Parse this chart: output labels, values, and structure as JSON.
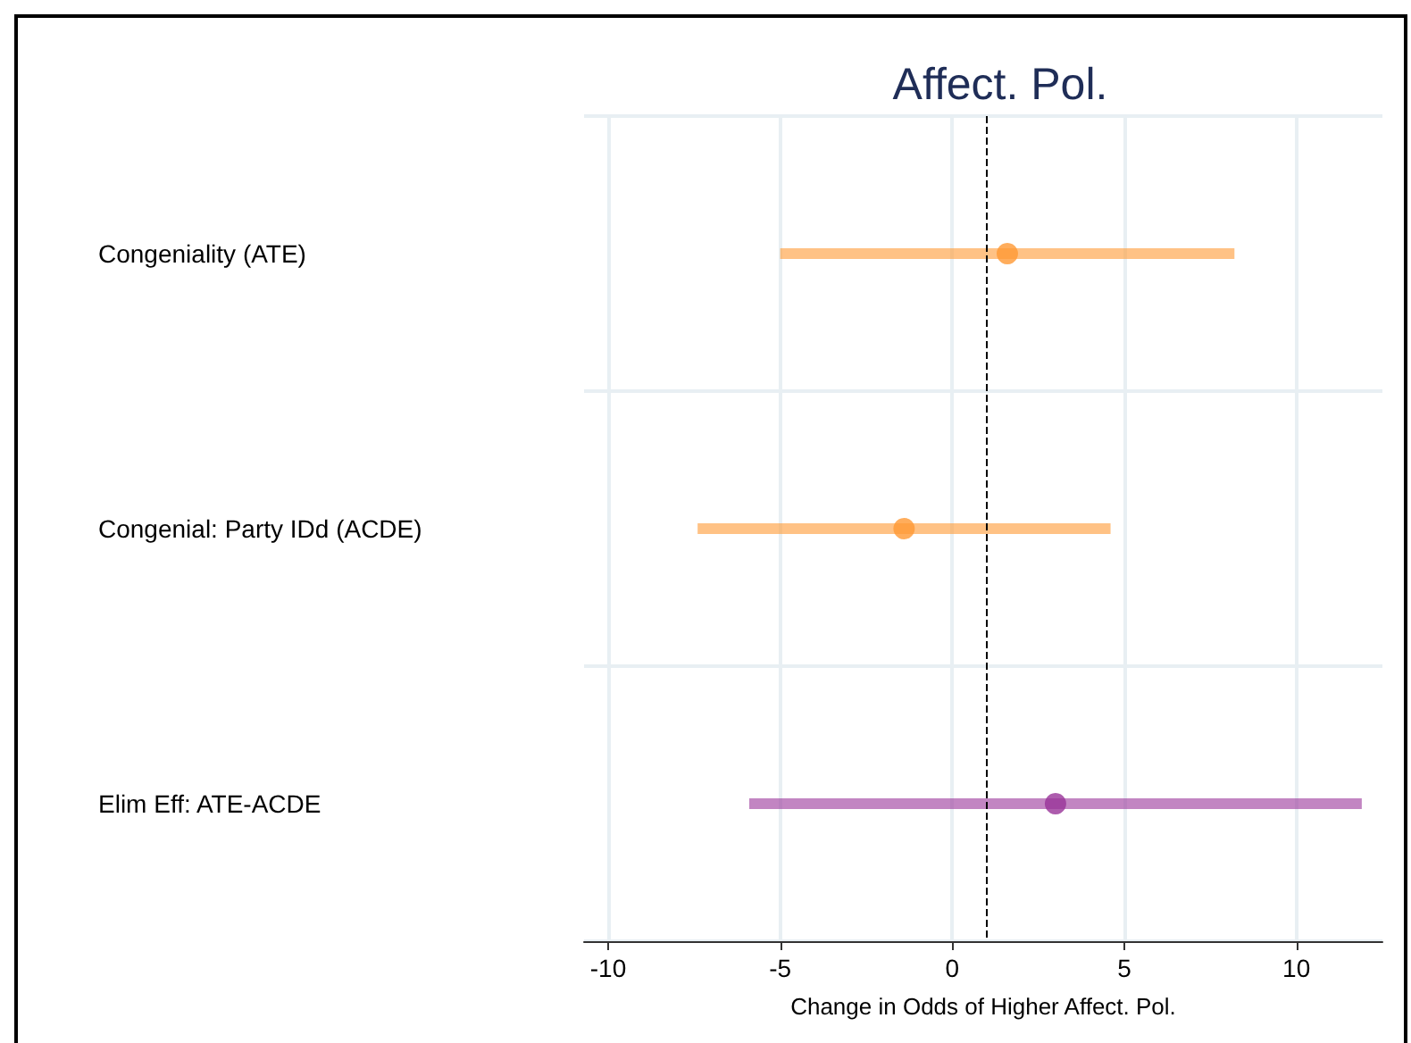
{
  "chart_data": {
    "type": "scatter",
    "orientation": "horizontal",
    "title": "Affect. Pol.",
    "xlabel": "Change in Odds of Higher Affect. Pol.",
    "categories": [
      "Congeniality (ATE)",
      "Congenial: Party IDd (ACDE)",
      "Elim Eff: ATE-ACDE"
    ],
    "values": [
      1.6,
      -1.4,
      3.0
    ],
    "errors": [
      [
        -5.0,
        8.2
      ],
      [
        -7.4,
        4.6
      ],
      [
        -5.9,
        11.9
      ]
    ],
    "colors": [
      "#ff9933",
      "#ff9933",
      "#993399"
    ],
    "marker": "circle",
    "xlim": [
      -10.7,
      12.5
    ],
    "xticks": [
      -10,
      -5,
      0,
      5,
      10
    ],
    "grid": true,
    "ref_lines": [
      {
        "axis": "x",
        "value": 1,
        "color": "#000000",
        "line_style": "dashed"
      }
    ]
  }
}
